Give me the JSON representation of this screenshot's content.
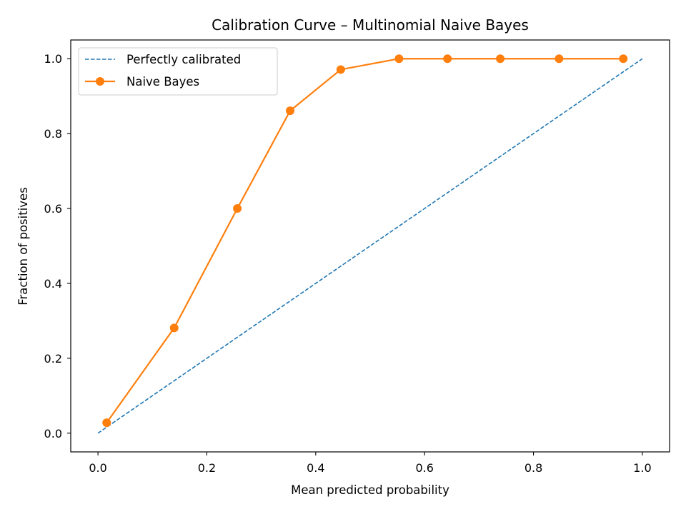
{
  "chart_data": {
    "type": "line",
    "title": "Calibration Curve – Multinomial Naive Bayes",
    "xlabel": "Mean predicted probability",
    "ylabel": "Fraction of positives",
    "xlim": [
      -0.05,
      1.05
    ],
    "ylim": [
      -0.05,
      1.05
    ],
    "xticks": [
      0.0,
      0.2,
      0.4,
      0.6,
      0.8,
      1.0
    ],
    "yticks": [
      0.0,
      0.2,
      0.4,
      0.6,
      0.8,
      1.0
    ],
    "xtick_labels": [
      "0.0",
      "0.2",
      "0.4",
      "0.6",
      "0.8",
      "1.0"
    ],
    "ytick_labels": [
      "0.0",
      "0.2",
      "0.4",
      "0.6",
      "0.8",
      "1.0"
    ],
    "grid": false,
    "legend_position": "top-left",
    "series": [
      {
        "name": "Perfectly calibrated",
        "style": "dashed",
        "color": "#1f77b4",
        "x": [
          0.0,
          1.0
        ],
        "y": [
          0.0,
          1.0
        ]
      },
      {
        "name": "Naive Bayes",
        "style": "solid-with-markers",
        "color": "#ff7f0e",
        "x": [
          0.016,
          0.14,
          0.256,
          0.353,
          0.446,
          0.553,
          0.642,
          0.739,
          0.847,
          0.965
        ],
        "y": [
          0.028,
          0.281,
          0.6,
          0.861,
          0.971,
          1.0,
          1.0,
          1.0,
          1.0,
          1.0
        ]
      }
    ]
  }
}
